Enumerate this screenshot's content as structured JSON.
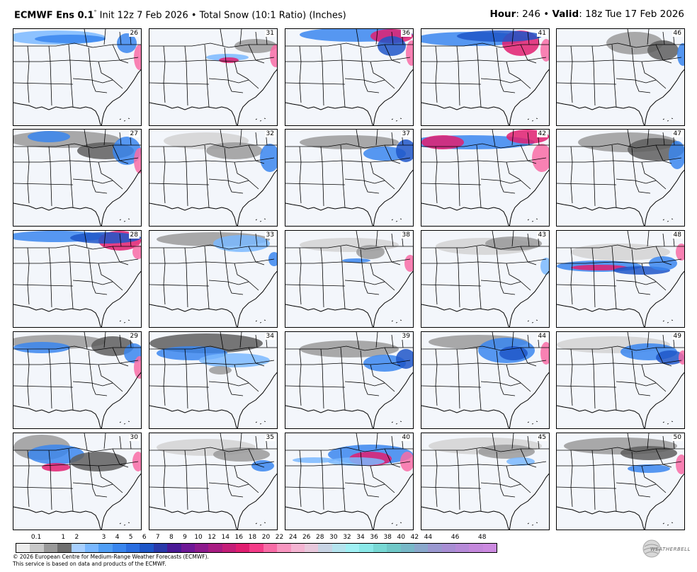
{
  "header": {
    "model": "ECMWF Ens 0.1",
    "degree": "°",
    "rest": " Init 12z 7 Feb 2026 • Total Snow (10:1 Ratio) (Inches)",
    "hour_label": "Hour",
    "hour_value": ": 246 • ",
    "valid_label": "Valid",
    "valid_value": ": 18z Tue 17 Feb 2026"
  },
  "members": [
    26,
    31,
    36,
    41,
    46,
    27,
    32,
    37,
    42,
    47,
    28,
    33,
    38,
    43,
    48,
    29,
    34,
    39,
    44,
    49,
    30,
    35,
    40,
    45,
    50
  ],
  "legend": {
    "ticks": [
      "0.1",
      "1",
      "2",
      "3",
      "4",
      "5",
      "6",
      "7",
      "8",
      "9",
      "10",
      "12",
      "14",
      "16",
      "18",
      "20",
      "22",
      "24",
      "26",
      "28",
      "30",
      "32",
      "34",
      "36",
      "38",
      "40",
      "42",
      "44",
      "46",
      "48"
    ],
    "colors": [
      "#ececec",
      "#c8c8c8",
      "#9a9a9a",
      "#6f6f6f",
      "#a8d0ff",
      "#7ab8ff",
      "#509ef5",
      "#3a86ee",
      "#2a6ee0",
      "#1e56c8",
      "#2a3aaa",
      "#4a1a96",
      "#6e1896",
      "#8c1a8c",
      "#a81c82",
      "#c41e78",
      "#e01e70",
      "#f43c88",
      "#f86ca6",
      "#f896c0",
      "#f4b4d2",
      "#e8c8dc",
      "#c8d4e4",
      "#b4e4ee",
      "#a0f0f4",
      "#8ae8e8",
      "#78d8d4",
      "#70c8c8",
      "#78b8c8",
      "#8aa8cc",
      "#9a98d0",
      "#a88ed4",
      "#b68ad8",
      "#c488dc",
      "#cc8ae0"
    ]
  },
  "footer": {
    "line1": "© 2026 European Centre for Medium-Range Weather Forecasts (ECMWF).",
    "line2": "This service is based on data and products of the ECMWF."
  },
  "logo": {
    "text": "WEATHERBELL"
  },
  "colors": {
    "panel_bg": "#f3f6fb",
    "light_gray": "#d2d2d2",
    "mid_gray": "#9a9a9a",
    "dark_gray": "#5e5e5e",
    "light_blue": "#7ab8ff",
    "blue": "#3a86ee",
    "dark_blue": "#1e56c8",
    "purple": "#6e1896",
    "magenta": "#e01e70",
    "pink": "#f86ca6"
  }
}
